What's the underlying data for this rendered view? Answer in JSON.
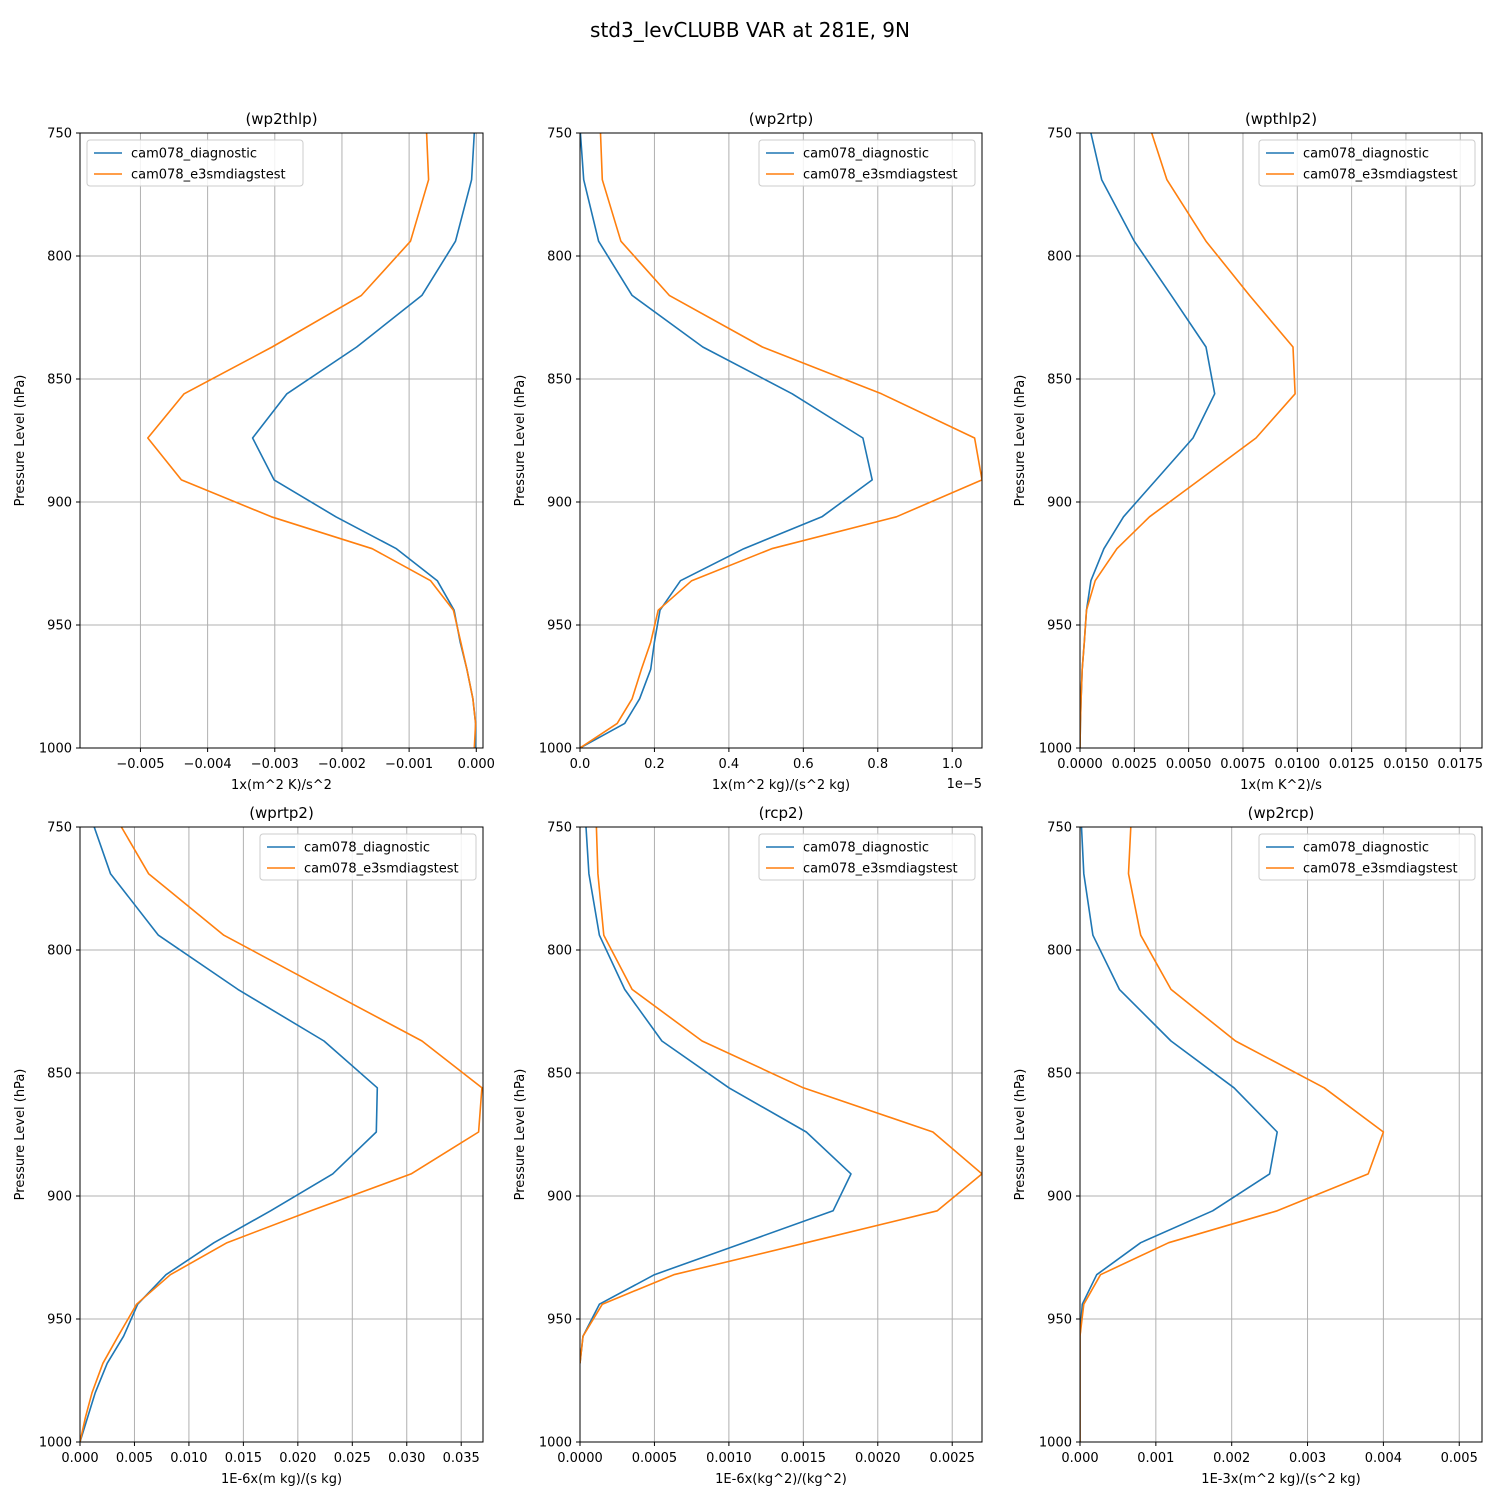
{
  "title": "std3_levCLUBB VAR at 281E, 9N",
  "series_names": [
    "cam078_diagnostic",
    "cam078_e3smdiagstest"
  ],
  "colors": {
    "cam078_diagnostic": "#1f77b4",
    "cam078_e3smdiagstest": "#ff7f0e",
    "grid": "#b0b0b0"
  },
  "chart_data": [
    {
      "type": "line",
      "title": "(wp2thlp)",
      "xlabel": "1x(m^2 K)/s^2",
      "ylabel": "Pressure Level (hPa)",
      "xlim": [
        -0.0059,
        0.0001
      ],
      "ylim": [
        1000,
        750
      ],
      "y_inverted": true,
      "grid": true,
      "legend": "upper left",
      "offset_text": "",
      "xticks": [
        -0.005,
        -0.004,
        -0.003,
        -0.002,
        -0.001,
        0.0
      ],
      "xticklabels": [
        "−0.005",
        "−0.004",
        "−0.003",
        "−0.002",
        "−0.001",
        "0.000"
      ],
      "yticks": [
        750,
        800,
        850,
        900,
        950,
        1000
      ],
      "yticklabels": [
        "750",
        "800",
        "850",
        "900",
        "950",
        "1000"
      ],
      "series": [
        {
          "name": "cam078_diagnostic",
          "levels": [
            750,
            769,
            794,
            816,
            837,
            856,
            874,
            891,
            906,
            919,
            932,
            944,
            957,
            968,
            980,
            990,
            1000
          ],
          "values": [
            -3e-05,
            -7e-05,
            -0.00031,
            -0.00081,
            -0.00178,
            -0.00282,
            -0.00333,
            -0.00301,
            -0.00209,
            -0.00119,
            -0.00058,
            -0.00033,
            -0.00024,
            -0.00014,
            -5e-05,
            -1e-05,
            -1e-05
          ]
        },
        {
          "name": "cam078_e3smdiagstest",
          "levels": [
            750,
            769,
            794,
            816,
            837,
            856,
            874,
            891,
            906,
            919,
            932,
            944,
            957,
            968,
            980,
            990,
            1000
          ],
          "values": [
            -0.00074,
            -0.00071,
            -0.00098,
            -0.00171,
            -0.00304,
            -0.00435,
            -0.00489,
            -0.00439,
            -0.00305,
            -0.00155,
            -0.00068,
            -0.00034,
            -0.00023,
            -0.00014,
            -5e-05,
            -1e-05,
            -3e-05
          ]
        }
      ]
    },
    {
      "type": "line",
      "title": "(wp2rtp)",
      "xlabel": "1x(m^2 kg)/(s^2 kg)",
      "ylabel": "Pressure Level (hPa)",
      "xlim": [
        0.0,
        1.08
      ],
      "ylim": [
        1000,
        750
      ],
      "y_inverted": true,
      "grid": true,
      "legend": "upper right",
      "offset_text": "1e−5",
      "xticks": [
        0.0,
        0.2,
        0.4,
        0.6,
        0.8,
        1.0
      ],
      "xticklabels": [
        "0.0",
        "0.2",
        "0.4",
        "0.6",
        "0.8",
        "1.0"
      ],
      "yticks": [
        750,
        800,
        850,
        900,
        950,
        1000
      ],
      "yticklabels": [
        "750",
        "800",
        "850",
        "900",
        "950",
        "1000"
      ],
      "series": [
        {
          "name": "cam078_diagnostic",
          "levels": [
            750,
            769,
            794,
            816,
            837,
            856,
            874,
            891,
            906,
            919,
            932,
            944,
            957,
            968,
            980,
            990,
            1000
          ],
          "values": [
            0.001,
            0.01,
            0.05,
            0.14,
            0.33,
            0.57,
            0.76,
            0.785,
            0.65,
            0.44,
            0.27,
            0.215,
            0.2,
            0.19,
            0.16,
            0.12,
            0.0
          ]
        },
        {
          "name": "cam078_e3smdiagstest",
          "levels": [
            750,
            769,
            794,
            816,
            837,
            856,
            874,
            891,
            906,
            919,
            932,
            944,
            957,
            968,
            980,
            990,
            1000
          ],
          "values": [
            0.055,
            0.06,
            0.11,
            0.24,
            0.49,
            0.81,
            1.06,
            1.08,
            0.85,
            0.515,
            0.3,
            0.21,
            0.19,
            0.165,
            0.14,
            0.1,
            0.0
          ]
        }
      ]
    },
    {
      "type": "line",
      "title": "(wpthlp2)",
      "xlabel": "1x(m K^2)/s",
      "ylabel": "Pressure Level (hPa)",
      "xlim": [
        0.0,
        0.0185
      ],
      "ylim": [
        1000,
        750
      ],
      "y_inverted": true,
      "grid": true,
      "legend": "upper right",
      "offset_text": "",
      "xticks": [
        0.0,
        0.0025,
        0.005,
        0.0075,
        0.01,
        0.0125,
        0.015,
        0.0175
      ],
      "xticklabels": [
        "0.0000",
        "0.0025",
        "0.0050",
        "0.0075",
        "0.0100",
        "0.0125",
        "0.0150",
        "0.0175"
      ],
      "yticks": [
        750,
        800,
        850,
        900,
        950,
        1000
      ],
      "yticklabels": [
        "750",
        "800",
        "850",
        "900",
        "950",
        "1000"
      ],
      "series": [
        {
          "name": "cam078_diagnostic",
          "levels": [
            750,
            769,
            794,
            816,
            837,
            856,
            874,
            891,
            906,
            919,
            932,
            944,
            957,
            968,
            980,
            990,
            1000
          ],
          "values": [
            0.0005,
            0.001,
            0.0025,
            0.0042,
            0.0058,
            0.0062,
            0.0052,
            0.0035,
            0.002,
            0.0011,
            0.0005,
            0.0003,
            0.0002,
            0.0001,
            5e-05,
            2e-05,
            0.0
          ]
        },
        {
          "name": "cam078_e3smdiagstest",
          "levels": [
            750,
            769,
            794,
            816,
            837,
            856,
            874,
            891,
            906,
            919,
            932,
            944,
            957,
            968,
            980,
            990,
            1000
          ],
          "values": [
            0.0033,
            0.004,
            0.0058,
            0.0078,
            0.0098,
            0.0099,
            0.0081,
            0.0055,
            0.0032,
            0.0017,
            0.0007,
            0.0003,
            0.0002,
            0.0001,
            5e-05,
            2e-05,
            0.0
          ]
        }
      ]
    },
    {
      "type": "line",
      "title": "(wprtp2)",
      "xlabel": "1E-6x(m kg)/(s kg)",
      "ylabel": "Pressure Level (hPa)",
      "xlim": [
        0.0,
        0.037
      ],
      "ylim": [
        1000,
        750
      ],
      "y_inverted": true,
      "grid": true,
      "legend": "upper right",
      "offset_text": "",
      "xticks": [
        0.0,
        0.005,
        0.01,
        0.015,
        0.02,
        0.025,
        0.03,
        0.035
      ],
      "xticklabels": [
        "0.000",
        "0.005",
        "0.010",
        "0.015",
        "0.020",
        "0.025",
        "0.030",
        "0.035"
      ],
      "yticks": [
        750,
        800,
        850,
        900,
        950,
        1000
      ],
      "yticklabels": [
        "750",
        "800",
        "850",
        "900",
        "950",
        "1000"
      ],
      "series": [
        {
          "name": "cam078_diagnostic",
          "levels": [
            750,
            769,
            794,
            816,
            837,
            856,
            874,
            891,
            906,
            919,
            932,
            944,
            957,
            968,
            980,
            990,
            1000
          ],
          "values": [
            0.0013,
            0.0028,
            0.0072,
            0.0145,
            0.0224,
            0.0273,
            0.0272,
            0.0232,
            0.0175,
            0.0123,
            0.0079,
            0.0053,
            0.004,
            0.0025,
            0.0014,
            0.0007,
            0.0
          ]
        },
        {
          "name": "cam078_e3smdiagstest",
          "levels": [
            750,
            769,
            794,
            816,
            837,
            856,
            874,
            891,
            906,
            919,
            932,
            944,
            957,
            968,
            980,
            990,
            1000
          ],
          "values": [
            0.0038,
            0.0063,
            0.0132,
            0.0225,
            0.0314,
            0.0369,
            0.0366,
            0.0304,
            0.0212,
            0.0135,
            0.0083,
            0.0052,
            0.0035,
            0.0021,
            0.0011,
            0.0005,
            0.0
          ]
        }
      ]
    },
    {
      "type": "line",
      "title": "(rcp2)",
      "xlabel": "1E-6x(kg^2)/(kg^2)",
      "ylabel": "Pressure Level (hPa)",
      "xlim": [
        0.0,
        0.0027
      ],
      "ylim": [
        1000,
        750
      ],
      "y_inverted": true,
      "grid": true,
      "legend": "upper right",
      "offset_text": "",
      "xticks": [
        0.0,
        0.0005,
        0.001,
        0.0015,
        0.002,
        0.0025
      ],
      "xticklabels": [
        "0.0000",
        "0.0005",
        "0.0010",
        "0.0015",
        "0.0020",
        "0.0025"
      ],
      "yticks": [
        750,
        800,
        850,
        900,
        950,
        1000
      ],
      "yticklabels": [
        "750",
        "800",
        "850",
        "900",
        "950",
        "1000"
      ],
      "series": [
        {
          "name": "cam078_diagnostic",
          "levels": [
            750,
            769,
            794,
            816,
            837,
            856,
            874,
            891,
            906,
            919,
            932,
            944,
            957,
            968
          ],
          "values": [
            4e-05,
            6e-05,
            0.00013,
            0.0003,
            0.00055,
            0.001,
            0.00152,
            0.00182,
            0.0017,
            0.0011,
            0.0005,
            0.00013,
            2e-05,
            0.0
          ]
        },
        {
          "name": "cam078_e3smdiagstest",
          "levels": [
            750,
            769,
            794,
            816,
            837,
            856,
            874,
            891,
            906,
            919,
            932,
            944,
            957,
            968
          ],
          "values": [
            0.00011,
            0.00012,
            0.00016,
            0.00035,
            0.00082,
            0.0015,
            0.00237,
            0.0027,
            0.0024,
            0.00152,
            0.00063,
            0.00015,
            2e-05,
            0.0
          ]
        }
      ]
    },
    {
      "type": "line",
      "title": "(wp2rcp)",
      "xlabel": "1E-3x(m^2 kg)/(s^2 kg)",
      "ylabel": "Pressure Level (hPa)",
      "xlim": [
        0.0,
        0.0053
      ],
      "ylim": [
        1000,
        750
      ],
      "y_inverted": true,
      "grid": true,
      "legend": "upper right",
      "offset_text": "",
      "xticks": [
        0.0,
        0.001,
        0.002,
        0.003,
        0.004,
        0.005
      ],
      "xticklabels": [
        "0.000",
        "0.001",
        "0.002",
        "0.003",
        "0.004",
        "0.005"
      ],
      "yticks": [
        750,
        800,
        850,
        900,
        950,
        1000
      ],
      "yticklabels": [
        "750",
        "800",
        "850",
        "900",
        "950",
        "1000"
      ],
      "series": [
        {
          "name": "cam078_diagnostic",
          "levels": [
            750,
            769,
            794,
            816,
            837,
            856,
            874,
            891,
            906,
            919,
            932,
            944,
            957,
            968,
            980,
            990,
            1000
          ],
          "values": [
            2e-05,
            5e-05,
            0.00017,
            0.00052,
            0.0012,
            0.00203,
            0.0026,
            0.0025,
            0.00175,
            0.0008,
            0.00022,
            3e-05,
            0.0,
            0.0,
            0.0,
            0.0,
            0.0
          ]
        },
        {
          "name": "cam078_e3smdiagstest",
          "levels": [
            750,
            769,
            794,
            816,
            837,
            856,
            874,
            891,
            906,
            919,
            932,
            944,
            957,
            968,
            980,
            990,
            1000
          ],
          "values": [
            0.00067,
            0.00064,
            0.0008,
            0.0012,
            0.00205,
            0.00322,
            0.004,
            0.0038,
            0.0026,
            0.00117,
            0.00027,
            5e-05,
            0.0,
            0.0,
            0.0,
            0.0,
            0.0
          ]
        }
      ]
    }
  ]
}
